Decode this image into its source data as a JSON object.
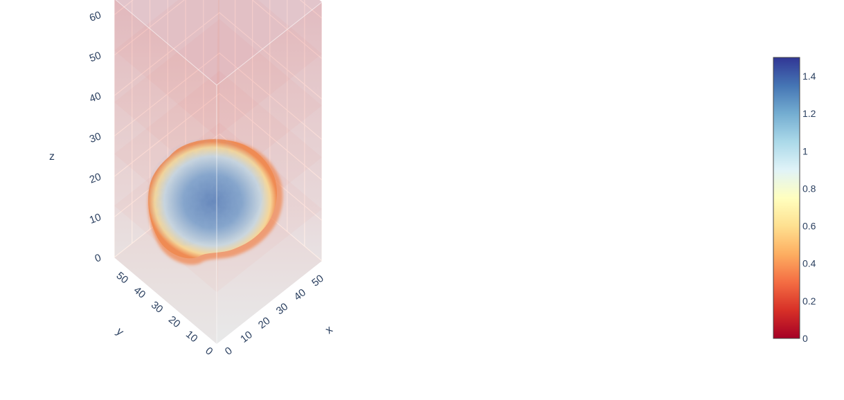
{
  "chart_data": {
    "type": "volume",
    "title": "",
    "axes": {
      "x": {
        "title": "x",
        "range": [
          0,
          59
        ],
        "ticks": [
          "0",
          "10",
          "20",
          "30",
          "40",
          "50"
        ]
      },
      "y": {
        "title": "y",
        "range": [
          0,
          59
        ],
        "ticks": [
          "0",
          "10",
          "20",
          "30",
          "40",
          "50"
        ]
      },
      "z": {
        "title": "z",
        "range": [
          0,
          64
        ],
        "ticks": [
          "0",
          "10",
          "20",
          "30",
          "40",
          "50",
          "60"
        ]
      }
    },
    "grid": true,
    "colorbar": {
      "colorscale": "RdYlBu",
      "range": [
        0,
        1.5
      ],
      "tick_values": [
        0,
        0.2,
        0.4,
        0.6,
        0.8,
        1,
        1.2,
        1.4
      ],
      "tick_labels": [
        "0",
        "0.2",
        "0.4",
        "0.6",
        "0.8",
        "1",
        "1.2",
        "1.4"
      ],
      "placement": "right",
      "colors": [
        "#a50026",
        "#d73027",
        "#f46d43",
        "#fdae61",
        "#fee090",
        "#ffffbf",
        "#e0f3f8",
        "#abd9e9",
        "#74add1",
        "#4575b4",
        "#313695"
      ]
    },
    "volume": {
      "background_value": 0.05,
      "core_value": 1.25,
      "edge_value": 0.35,
      "opacity": "low"
    }
  }
}
